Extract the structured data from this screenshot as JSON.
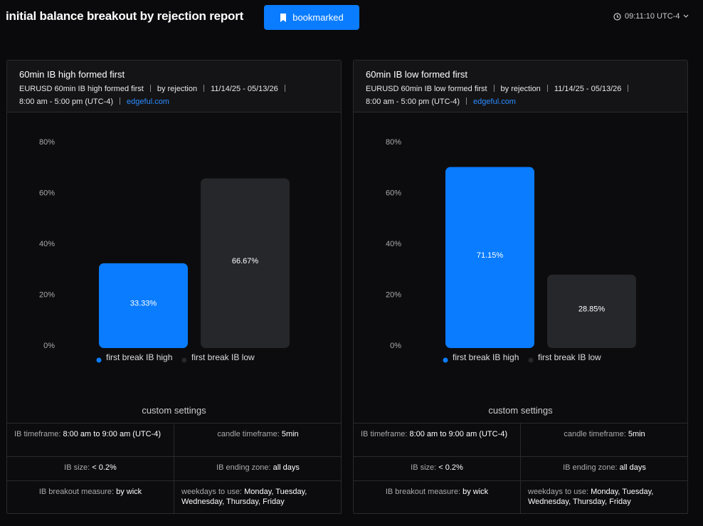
{
  "header": {
    "title": "initial balance breakout by rejection report",
    "button": "bookmarked",
    "time": "09:11:10 UTC-4"
  },
  "chart_data": [
    {
      "type": "bar",
      "title": "60min IB high formed first",
      "categories": [
        "first break IB high",
        "first break IB low"
      ],
      "values": [
        33.33,
        66.67
      ],
      "value_labels": [
        "33.33%",
        "66.67%"
      ],
      "colors": [
        "#0a7cff",
        "#26272b"
      ],
      "ylim": [
        0,
        80
      ],
      "yticks": [
        {
          "value": 0,
          "label": "0%"
        },
        {
          "value": 20,
          "label": "20%"
        },
        {
          "value": 40,
          "label": "40%"
        },
        {
          "value": 60,
          "label": "60%"
        },
        {
          "value": 80,
          "label": "80%"
        }
      ],
      "grid": false,
      "legend": "bottom"
    },
    {
      "type": "bar",
      "title": "60min IB low formed first",
      "categories": [
        "first break IB high",
        "first break IB low"
      ],
      "values": [
        71.15,
        28.85
      ],
      "value_labels": [
        "71.15%",
        "28.85%"
      ],
      "colors": [
        "#0a7cff",
        "#26272b"
      ],
      "ylim": [
        0,
        80
      ],
      "yticks": [
        {
          "value": 0,
          "label": "0%"
        },
        {
          "value": 20,
          "label": "20%"
        },
        {
          "value": 40,
          "label": "40%"
        },
        {
          "value": 60,
          "label": "60%"
        },
        {
          "value": 80,
          "label": "80%"
        }
      ],
      "grid": false,
      "legend": "bottom"
    }
  ],
  "panels": [
    {
      "subtitle": [
        "EURUSD 60min IB high formed first",
        "by rejection",
        "11/14/25 - 05/13/26",
        "8:00 am - 5:00 pm (UTC-4)",
        "edgeful.com"
      ],
      "settings_title": "custom settings",
      "settings": [
        {
          "label": "IB timeframe:",
          "value": "8:00 am to 9:00 am (UTC-4)"
        },
        {
          "label": "candle timeframe:",
          "value": "5min"
        },
        {
          "label": "IB size:",
          "value": "< 0.2%"
        },
        {
          "label": "IB ending zone:",
          "value": "all days"
        },
        {
          "label": "IB breakout measure:",
          "value": "by wick"
        },
        {
          "label": "weekdays to use:",
          "value": "Monday, Tuesday, Wednesday, Thursday, Friday"
        }
      ]
    },
    {
      "subtitle": [
        "EURUSD 60min IB low formed first",
        "by rejection",
        "11/14/25 - 05/13/26",
        "8:00 am - 5:00 pm (UTC-4)",
        "edgeful.com"
      ],
      "settings_title": "custom settings",
      "settings": [
        {
          "label": "IB timeframe:",
          "value": "8:00 am to 9:00 am (UTC-4)"
        },
        {
          "label": "candle timeframe:",
          "value": "5min"
        },
        {
          "label": "IB size:",
          "value": "< 0.2%"
        },
        {
          "label": "IB ending zone:",
          "value": "all days"
        },
        {
          "label": "IB breakout measure:",
          "value": "by wick"
        },
        {
          "label": "weekdays to use:",
          "value": "Monday, Tuesday, Wednesday, Thursday, Friday"
        }
      ]
    }
  ]
}
